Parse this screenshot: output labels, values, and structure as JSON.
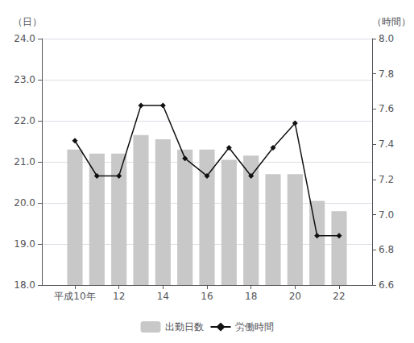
{
  "chart_data": {
    "type": "bar",
    "x": [
      10,
      11,
      12,
      13,
      14,
      15,
      16,
      17,
      18,
      19,
      20,
      21,
      22
    ],
    "xlim": [
      8.5,
      23.5
    ],
    "xticks": [
      {
        "value": 10,
        "label": "平成10年"
      },
      12,
      14,
      16,
      18,
      20,
      22
    ],
    "ylabel": "（日）",
    "y2label": "（時間）",
    "ylim": [
      18.0,
      24.0
    ],
    "yticks": [
      {
        "value": 18.0,
        "label": "18.0"
      },
      {
        "value": 19.0,
        "label": "19.0"
      },
      {
        "value": 20.0,
        "label": "20.0"
      },
      {
        "value": 21.0,
        "label": "21.0"
      },
      {
        "value": 22.0,
        "label": "22.0"
      },
      {
        "value": 23.0,
        "label": "23.0"
      },
      {
        "value": 24.0,
        "label": "24.0"
      }
    ],
    "y2lim": [
      6.6,
      8.0
    ],
    "y2ticks": [
      6.6,
      6.8,
      {
        "value": 7.0,
        "label": "7.0"
      },
      7.2,
      7.4,
      7.6,
      7.8,
      {
        "value": 8.0,
        "label": "8.0"
      }
    ],
    "grid": true,
    "legend": "bottom",
    "series": [
      {
        "name": "出勤日数",
        "type": "bar",
        "color": "#c8c8c8",
        "values": [
          21.3,
          21.2,
          21.2,
          21.65,
          21.55,
          21.3,
          21.3,
          21.05,
          21.15,
          20.7,
          20.7,
          20.05,
          19.8
        ]
      },
      {
        "name": "労働時間",
        "type": "line",
        "color": "#111111",
        "marker": "diamond",
        "axis": "y2",
        "values": [
          7.42,
          7.22,
          7.22,
          7.62,
          7.62,
          7.32,
          7.22,
          7.38,
          7.22,
          7.38,
          7.52,
          6.88,
          6.88
        ]
      }
    ]
  }
}
